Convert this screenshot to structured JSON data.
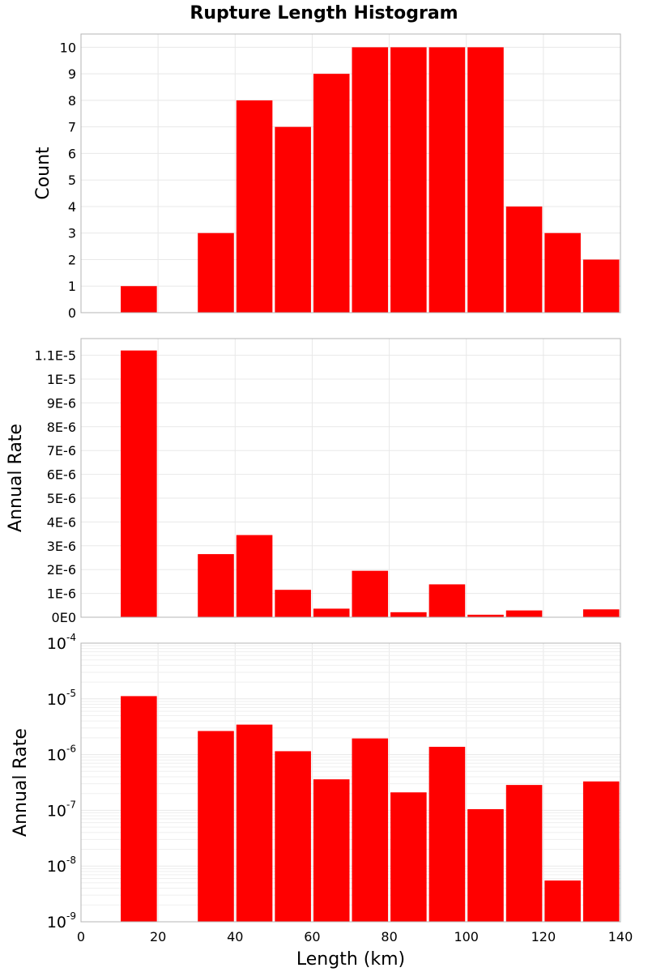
{
  "chart_data": {
    "title": "Rupture Length Histogram",
    "bar_color": "#ff0000",
    "xlabel": "Length (km)",
    "xlim": [
      0,
      140
    ],
    "x_ticks": [
      0,
      20,
      40,
      60,
      80,
      100,
      120,
      140
    ],
    "bin_width": 10,
    "grid": true,
    "panels": [
      {
        "type": "bar",
        "ylabel": "Count",
        "yscale": "linear",
        "ylim": [
          0,
          10.5
        ],
        "y_ticks": [
          0,
          1,
          2,
          3,
          4,
          5,
          6,
          7,
          8,
          9,
          10
        ],
        "y_tick_labels": [
          "0",
          "1",
          "2",
          "3",
          "4",
          "5",
          "6",
          "7",
          "8",
          "9",
          "10"
        ],
        "bins": [
          {
            "x": 15,
            "y": 1
          },
          {
            "x": 35,
            "y": 3
          },
          {
            "x": 45,
            "y": 8
          },
          {
            "x": 55,
            "y": 7
          },
          {
            "x": 65,
            "y": 9
          },
          {
            "x": 75,
            "y": 10
          },
          {
            "x": 85,
            "y": 10
          },
          {
            "x": 95,
            "y": 10
          },
          {
            "x": 105,
            "y": 10
          },
          {
            "x": 115,
            "y": 4
          },
          {
            "x": 125,
            "y": 3
          },
          {
            "x": 135,
            "y": 2
          }
        ]
      },
      {
        "type": "bar",
        "ylabel": "Annual Rate",
        "yscale": "linear",
        "ylim": [
          0,
          1.17e-05
        ],
        "y_ticks": [
          0,
          1e-06,
          2e-06,
          3e-06,
          4e-06,
          5e-06,
          6e-06,
          7e-06,
          8e-06,
          9e-06,
          1e-05,
          1.1e-05
        ],
        "y_tick_labels": [
          "0E0",
          "1E-6",
          "2E-6",
          "3E-6",
          "4E-6",
          "5E-6",
          "6E-6",
          "7E-6",
          "8E-6",
          "9E-6",
          "1E-5",
          "1.1E-5"
        ],
        "bins": [
          {
            "x": 15,
            "y": 1.12e-05
          },
          {
            "x": 35,
            "y": 2.65e-06
          },
          {
            "x": 45,
            "y": 3.45e-06
          },
          {
            "x": 55,
            "y": 1.15e-06
          },
          {
            "x": 65,
            "y": 3.6e-07
          },
          {
            "x": 75,
            "y": 1.95e-06
          },
          {
            "x": 85,
            "y": 2.1e-07
          },
          {
            "x": 95,
            "y": 1.38e-06
          },
          {
            "x": 105,
            "y": 1.05e-07
          },
          {
            "x": 115,
            "y": 2.85e-07
          },
          {
            "x": 125,
            "y": 5.5e-09
          },
          {
            "x": 135,
            "y": 3.3e-07
          }
        ]
      },
      {
        "type": "bar",
        "ylabel": "Annual Rate",
        "yscale": "log",
        "ylim": [
          1e-09,
          0.0001
        ],
        "y_ticks": [
          1e-09,
          1e-08,
          1e-07,
          1e-06,
          1e-05,
          0.0001
        ],
        "y_tick_labels": [
          {
            "base": "10",
            "exp": "-9"
          },
          {
            "base": "10",
            "exp": "-8"
          },
          {
            "base": "10",
            "exp": "-7"
          },
          {
            "base": "10",
            "exp": "-6"
          },
          {
            "base": "10",
            "exp": "-5"
          },
          {
            "base": "10",
            "exp": "-4"
          }
        ],
        "bins": [
          {
            "x": 15,
            "y": 1.12e-05
          },
          {
            "x": 35,
            "y": 2.65e-06
          },
          {
            "x": 45,
            "y": 3.45e-06
          },
          {
            "x": 55,
            "y": 1.15e-06
          },
          {
            "x": 65,
            "y": 3.6e-07
          },
          {
            "x": 75,
            "y": 1.95e-06
          },
          {
            "x": 85,
            "y": 2.1e-07
          },
          {
            "x": 95,
            "y": 1.38e-06
          },
          {
            "x": 105,
            "y": 1.05e-07
          },
          {
            "x": 115,
            "y": 2.85e-07
          },
          {
            "x": 125,
            "y": 5.5e-09
          },
          {
            "x": 135,
            "y": 3.3e-07
          }
        ]
      }
    ]
  }
}
